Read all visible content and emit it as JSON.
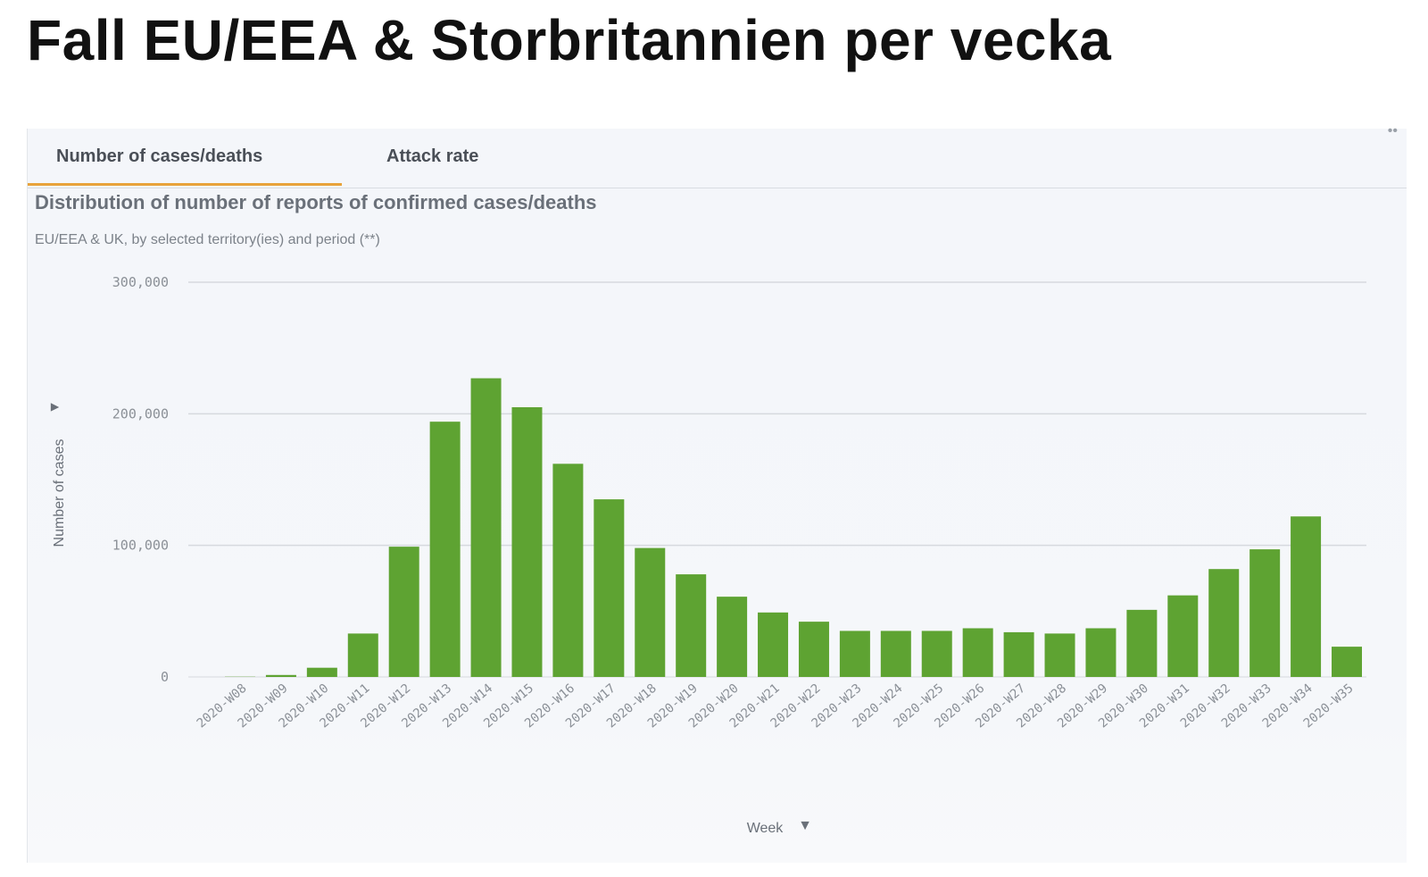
{
  "slide": {
    "title": "Fall EU/EEA & Storbritannien per vecka"
  },
  "tabs": [
    {
      "label": "Number of cases/deaths",
      "active": true
    },
    {
      "label": "Attack rate",
      "active": false
    }
  ],
  "accent_color": "#e8a33b",
  "bar_color": "#5ea332",
  "chart_data": {
    "type": "bar",
    "title": "Distribution of number of reports of confirmed cases/deaths",
    "subtitle": "EU/EEA & UK, by selected territory(ies) and period (**)",
    "xlabel": "Week",
    "ylabel": "Number of cases",
    "ylim": [
      0,
      300000
    ],
    "yticks": [
      0,
      100000,
      200000,
      300000
    ],
    "ytick_labels": [
      "0",
      "100,000",
      "200,000",
      "300,000"
    ],
    "grid": true,
    "categories": [
      "2020-W08",
      "2020-W09",
      "2020-W10",
      "2020-W11",
      "2020-W12",
      "2020-W13",
      "2020-W14",
      "2020-W15",
      "2020-W16",
      "2020-W17",
      "2020-W18",
      "2020-W19",
      "2020-W20",
      "2020-W21",
      "2020-W22",
      "2020-W23",
      "2020-W24",
      "2020-W25",
      "2020-W26",
      "2020-W27",
      "2020-W28",
      "2020-W29",
      "2020-W30",
      "2020-W31",
      "2020-W32",
      "2020-W33",
      "2020-W34",
      "2020-W35"
    ],
    "values": [
      200,
      1500,
      7000,
      33000,
      99000,
      194000,
      227000,
      205000,
      162000,
      135000,
      98000,
      78000,
      61000,
      49000,
      42000,
      35000,
      35000,
      35000,
      37000,
      34000,
      33000,
      37000,
      51000,
      62000,
      82000,
      97000,
      122000,
      23000
    ]
  }
}
